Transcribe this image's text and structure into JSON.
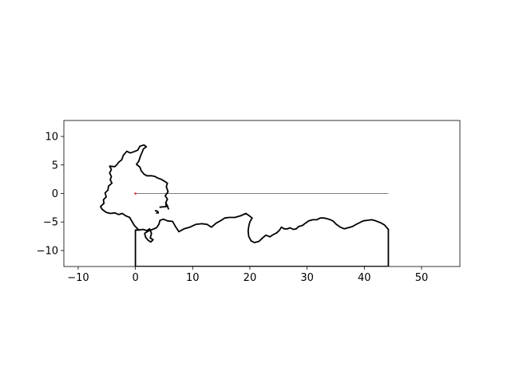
{
  "chart_data": {
    "type": "line",
    "title": "",
    "xlabel": "",
    "ylabel": "",
    "xlim": [
      -12.5,
      56.7
    ],
    "ylim": [
      -12.8,
      12.8
    ],
    "grid": false,
    "legend": "none",
    "aspect": "equal",
    "x_ticks": [
      -10,
      0,
      10,
      20,
      30,
      40,
      50
    ],
    "y_ticks": [
      -10,
      -5,
      0,
      5,
      10
    ],
    "x_tick_labels": [
      "−10",
      "0",
      "10",
      "20",
      "30",
      "40",
      "50"
    ],
    "y_tick_labels": [
      "−10",
      "−5",
      "0",
      "5",
      "10"
    ],
    "series": [
      {
        "color": "#000000",
        "line_width": "thick",
        "points": [
          [
            5.8,
            -2.8
          ],
          [
            5.6,
            -2.2
          ],
          [
            5.3,
            -1.6
          ],
          [
            5.6,
            -1.0
          ],
          [
            5.2,
            -0.4
          ],
          [
            5.7,
            0.3
          ],
          [
            5.4,
            1.2
          ],
          [
            5.6,
            1.8
          ],
          [
            5.0,
            2.2
          ],
          [
            4.5,
            2.5
          ],
          [
            3.9,
            2.7
          ],
          [
            3.4,
            3.0
          ],
          [
            2.8,
            3.1
          ],
          [
            2.0,
            3.1
          ],
          [
            1.5,
            3.4
          ],
          [
            1.0,
            4.0
          ],
          [
            0.8,
            4.6
          ],
          [
            0.2,
            5.1
          ],
          [
            0.6,
            5.7
          ],
          [
            0.9,
            6.6
          ],
          [
            1.2,
            7.3
          ],
          [
            1.4,
            7.8
          ],
          [
            1.9,
            8.2
          ],
          [
            1.5,
            8.5
          ],
          [
            0.8,
            8.3
          ],
          [
            0.4,
            7.6
          ],
          [
            -0.3,
            7.3
          ],
          [
            -0.9,
            7.1
          ],
          [
            -1.5,
            7.4
          ],
          [
            -2.1,
            6.7
          ],
          [
            -2.4,
            5.9
          ],
          [
            -2.9,
            5.5
          ],
          [
            -3.2,
            5.1
          ],
          [
            -3.6,
            4.7
          ],
          [
            -4.5,
            4.8
          ],
          [
            -4.2,
            4.2
          ],
          [
            -4.5,
            3.6
          ],
          [
            -4.2,
            3.0
          ],
          [
            -4.4,
            2.4
          ],
          [
            -4.1,
            1.8
          ],
          [
            -4.7,
            1.3
          ],
          [
            -4.8,
            0.6
          ],
          [
            -5.3,
            0.1
          ],
          [
            -5.1,
            -0.6
          ],
          [
            -5.6,
            -1.1
          ],
          [
            -5.5,
            -1.7
          ],
          [
            -6.1,
            -2.3
          ],
          [
            -5.8,
            -2.8
          ],
          [
            -5.1,
            -3.3
          ],
          [
            -4.4,
            -3.5
          ],
          [
            -3.6,
            -3.4
          ],
          [
            -2.9,
            -3.7
          ],
          [
            -2.3,
            -3.5
          ],
          [
            -1.7,
            -3.9
          ],
          [
            -1.0,
            -4.2
          ],
          [
            -0.6,
            -4.9
          ],
          [
            -0.2,
            -5.6
          ],
          [
            0.3,
            -6.1
          ],
          [
            0.6,
            -6.4
          ],
          [
            1.3,
            -6.3
          ],
          [
            2.0,
            -6.5
          ],
          [
            2.5,
            -6.2
          ],
          [
            2.8,
            -7.0
          ],
          [
            2.6,
            -7.8
          ],
          [
            3.1,
            -8.1
          ],
          [
            2.7,
            -8.5
          ],
          [
            2.2,
            -8.2
          ],
          [
            1.8,
            -7.7
          ],
          [
            1.6,
            -7.0
          ],
          [
            2.2,
            -6.6
          ],
          [
            3.0,
            -6.3
          ],
          [
            3.7,
            -6.0
          ],
          [
            4.1,
            -5.4
          ],
          [
            4.3,
            -4.7
          ],
          [
            4.9,
            -4.5
          ],
          [
            5.6,
            -4.8
          ],
          [
            6.5,
            -4.9
          ],
          [
            7.0,
            -5.8
          ],
          [
            7.6,
            -6.7
          ],
          [
            8.5,
            -6.2
          ],
          [
            9.5,
            -5.9
          ],
          [
            10.6,
            -5.4
          ],
          [
            11.6,
            -5.3
          ],
          [
            12.5,
            -5.4
          ],
          [
            13.3,
            -5.9
          ],
          [
            14.1,
            -5.2
          ],
          [
            15.0,
            -4.7
          ],
          [
            15.6,
            -4.3
          ],
          [
            16.4,
            -4.2
          ],
          [
            17.4,
            -4.2
          ],
          [
            18.4,
            -3.9
          ],
          [
            19.3,
            -3.5
          ],
          [
            19.9,
            -3.9
          ],
          [
            20.4,
            -4.3
          ],
          [
            20.0,
            -5.0
          ],
          [
            19.8,
            -5.8
          ],
          [
            19.7,
            -6.6
          ],
          [
            19.8,
            -7.5
          ],
          [
            20.2,
            -8.3
          ],
          [
            20.8,
            -8.6
          ],
          [
            21.6,
            -8.4
          ],
          [
            22.2,
            -7.8
          ],
          [
            22.8,
            -7.3
          ],
          [
            23.5,
            -7.6
          ],
          [
            24.1,
            -7.2
          ],
          [
            24.7,
            -6.9
          ],
          [
            25.2,
            -6.4
          ],
          [
            25.5,
            -5.9
          ],
          [
            26.0,
            -6.2
          ],
          [
            26.6,
            -6.2
          ],
          [
            27.0,
            -6.0
          ],
          [
            27.6,
            -6.3
          ],
          [
            28.1,
            -6.2
          ],
          [
            28.5,
            -5.8
          ],
          [
            29.2,
            -5.6
          ],
          [
            29.7,
            -5.2
          ],
          [
            30.3,
            -4.8
          ],
          [
            31.0,
            -4.6
          ],
          [
            31.7,
            -4.6
          ],
          [
            32.3,
            -4.3
          ],
          [
            33.0,
            -4.3
          ],
          [
            33.8,
            -4.5
          ],
          [
            34.5,
            -4.8
          ],
          [
            35.1,
            -5.4
          ],
          [
            35.8,
            -5.9
          ],
          [
            36.5,
            -6.2
          ],
          [
            37.2,
            -6.0
          ],
          [
            37.9,
            -5.8
          ],
          [
            38.6,
            -5.4
          ],
          [
            39.2,
            -5.1
          ],
          [
            39.8,
            -4.8
          ],
          [
            40.5,
            -4.7
          ],
          [
            41.3,
            -4.6
          ],
          [
            42.0,
            -4.8
          ],
          [
            42.8,
            -5.1
          ],
          [
            43.5,
            -5.5
          ],
          [
            44.2,
            -6.3
          ],
          [
            44.2,
            -12.8
          ],
          [
            0.0,
            -12.8
          ],
          [
            0.0,
            -6.4
          ],
          [
            0.6,
            -6.4
          ]
        ]
      },
      {
        "color": "#000000",
        "line_width": "thin",
        "points": [
          [
            0,
            0
          ],
          [
            44.2,
            0
          ]
        ]
      },
      {
        "color": "#000000",
        "line_width": "thick",
        "points": [
          [
            4.2,
            -2.4
          ],
          [
            5.4,
            -2.3
          ],
          [
            5.3,
            -1.8
          ]
        ]
      },
      {
        "color": "#000000",
        "line_width": "thick",
        "points": [
          [
            3.4,
            -3.0
          ],
          [
            3.9,
            -3.1
          ],
          [
            4.0,
            -3.4
          ],
          [
            3.6,
            -3.4
          ]
        ]
      }
    ],
    "marker": {
      "x": 0,
      "y": 0,
      "color": "#d62728"
    }
  }
}
